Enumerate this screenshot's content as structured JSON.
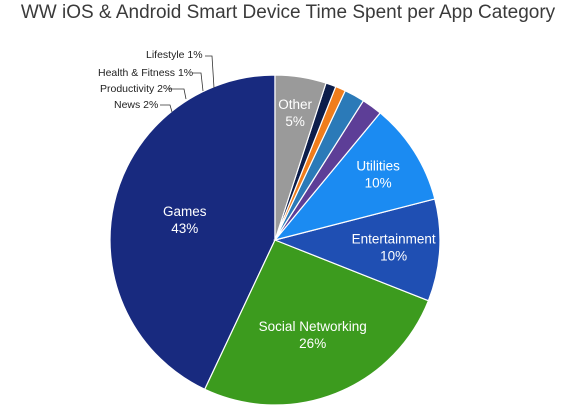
{
  "chart_data": {
    "type": "pie",
    "title": "WW iOS & Android Smart Device Time Spent per App Category",
    "slices": [
      {
        "label": "Games",
        "value": 43,
        "value_label": "43%",
        "color": "#182a7f",
        "placement": "inside"
      },
      {
        "label": "Social Networking",
        "value": 26,
        "value_label": "26%",
        "color": "#3c9b1e",
        "placement": "inside"
      },
      {
        "label": "Entertainment",
        "value": 10,
        "value_label": "10%",
        "color": "#1f4fb3",
        "placement": "inside"
      },
      {
        "label": "Utilities",
        "value": 10,
        "value_label": "10%",
        "color": "#1b8bf2",
        "placement": "inside"
      },
      {
        "label": "News",
        "value": 2,
        "value_label": "2%",
        "color": "#5d3e97",
        "placement": "outside"
      },
      {
        "label": "Productivity",
        "value": 2,
        "value_label": "2%",
        "color": "#2b7ab8",
        "placement": "outside"
      },
      {
        "label": "Health & Fitness",
        "value": 1,
        "value_label": "1%",
        "color": "#f07d1c",
        "placement": "outside"
      },
      {
        "label": "Lifestyle",
        "value": 1,
        "value_label": "1%",
        "color": "#0c1d4a",
        "placement": "outside"
      },
      {
        "label": "Other",
        "value": 5,
        "value_label": "5%",
        "color": "#9a9a9a",
        "placement": "inside"
      }
    ],
    "legend": "none"
  }
}
